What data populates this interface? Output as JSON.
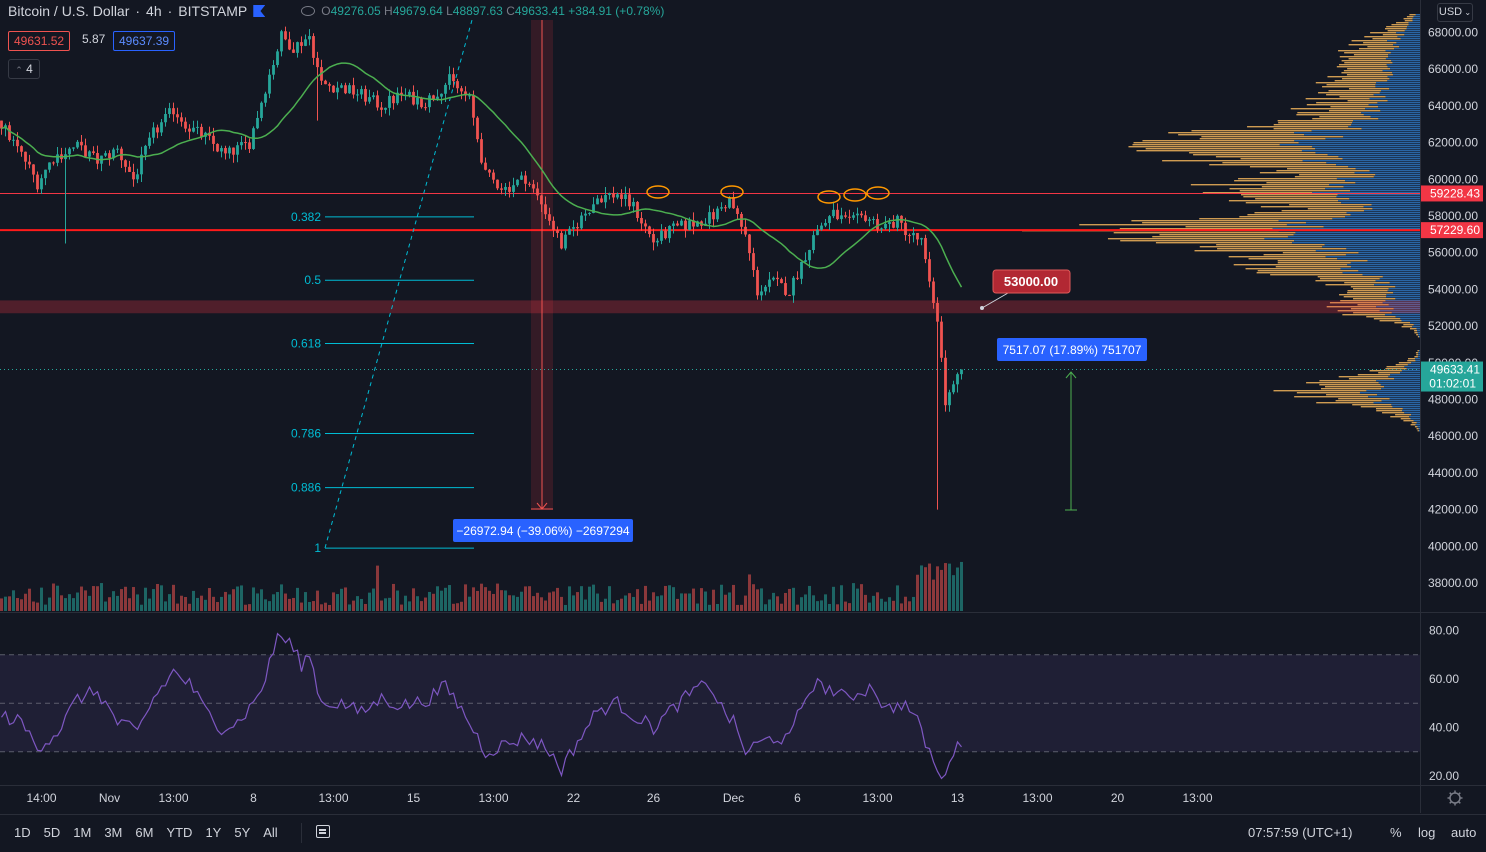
{
  "header": {
    "symbol": "Bitcoin / U.S. Dollar",
    "interval": "4h",
    "exchange": "BITSTAMP",
    "o_label": "O",
    "o_value": "49276.05",
    "h_label": "H",
    "h_value": "49679.64",
    "l_label": "L",
    "l_value": "48897.63",
    "c_label": "C",
    "c_value": "49633.41",
    "change": "+384.91 (+0.78%)",
    "bid": "49631.52",
    "spread": "5.87",
    "ask": "49637.39",
    "indicators_count": "4",
    "currency": "USD"
  },
  "bottom_bar": {
    "ranges": [
      "1D",
      "5D",
      "1M",
      "3M",
      "6M",
      "YTD",
      "1Y",
      "5Y",
      "All"
    ],
    "clock": "07:57:59 (UTC+1)",
    "percent": "%",
    "log": "log",
    "auto": "auto"
  },
  "colors": {
    "background": "#131722",
    "up": "#26a69a",
    "down": "#ef5350",
    "ma": "#4caf50",
    "rsi": "#7e57c2",
    "fib": "#00bcd4",
    "accent_blue": "#2962ff",
    "vp_up": "#f0b35b",
    "vp_down": "#2e6fb5"
  },
  "chart_data": [
    {
      "type": "candlestick",
      "title": "Bitcoin / U.S. Dollar",
      "y_axis": {
        "ylim": [
          36500,
          69500
        ],
        "ticks": [
          38000,
          40000,
          42000,
          44000,
          46000,
          48000,
          50000,
          52000,
          54000,
          56000,
          58000,
          60000,
          62000,
          64000,
          66000,
          68000
        ],
        "tick_labels": [
          "38000.00",
          "40000.00",
          "42000.00",
          "44000.00",
          "46000.00",
          "48000.00",
          "50000.00",
          "52000.00",
          "54000.00",
          "56000.00",
          "58000.00",
          "60000.00",
          "62000.00",
          "64000.00",
          "66000.00",
          "68000.00"
        ]
      },
      "x_axis": {
        "tick_labels": [
          "14:00",
          "Nov",
          "13:00",
          "8",
          "13:00",
          "15",
          "13:00",
          "22",
          "26",
          "Dec",
          "6",
          "13:00",
          "13",
          "13:00",
          "20",
          "13:00"
        ],
        "tick_bars": [
          10,
          27,
          43,
          63,
          83,
          103,
          123,
          143,
          163,
          183,
          199,
          219,
          239,
          259,
          279,
          299
        ]
      },
      "ohlc_key_points": [
        {
          "bar": 0,
          "close": 63000
        },
        {
          "bar": 6,
          "close": 61000
        },
        {
          "bar": 9,
          "close": 59800
        },
        {
          "bar": 13,
          "close": 61200
        },
        {
          "bar": 19,
          "close": 61800
        },
        {
          "bar": 24,
          "close": 61000
        },
        {
          "bar": 29,
          "close": 61600
        },
        {
          "bar": 33,
          "close": 60000
        },
        {
          "bar": 38,
          "close": 62500
        },
        {
          "bar": 43,
          "close": 63800
        },
        {
          "bar": 47,
          "close": 62800
        },
        {
          "bar": 51,
          "close": 62300
        },
        {
          "bar": 56,
          "close": 61300
        },
        {
          "bar": 62,
          "close": 62000
        },
        {
          "bar": 66,
          "close": 65000
        },
        {
          "bar": 70,
          "close": 67800
        },
        {
          "bar": 73,
          "close": 67200
        },
        {
          "bar": 77,
          "close": 67800
        },
        {
          "bar": 80,
          "close": 65200
        },
        {
          "bar": 85,
          "close": 65000
        },
        {
          "bar": 90,
          "close": 64600
        },
        {
          "bar": 95,
          "close": 64000
        },
        {
          "bar": 100,
          "close": 64600
        },
        {
          "bar": 106,
          "close": 64200
        },
        {
          "bar": 112,
          "close": 65400
        },
        {
          "bar": 117,
          "close": 64300
        },
        {
          "bar": 121,
          "close": 60200
        },
        {
          "bar": 126,
          "close": 59500
        },
        {
          "bar": 131,
          "close": 60100
        },
        {
          "bar": 136,
          "close": 58300
        },
        {
          "bar": 140,
          "close": 56400
        },
        {
          "bar": 144,
          "close": 57600
        },
        {
          "bar": 149,
          "close": 59000
        },
        {
          "bar": 154,
          "close": 59200
        },
        {
          "bar": 158,
          "close": 58500
        },
        {
          "bar": 163,
          "close": 56600
        },
        {
          "bar": 168,
          "close": 57300
        },
        {
          "bar": 173,
          "close": 57600
        },
        {
          "bar": 178,
          "close": 58000
        },
        {
          "bar": 182,
          "close": 58900
        },
        {
          "bar": 186,
          "close": 56900
        },
        {
          "bar": 189,
          "close": 53900
        },
        {
          "bar": 193,
          "close": 54400
        },
        {
          "bar": 197,
          "close": 53900
        },
        {
          "bar": 201,
          "close": 55900
        },
        {
          "bar": 204,
          "close": 57300
        },
        {
          "bar": 208,
          "close": 58100
        },
        {
          "bar": 212,
          "close": 57600
        },
        {
          "bar": 216,
          "close": 58000
        },
        {
          "bar": 220,
          "close": 57400
        },
        {
          "bar": 224,
          "close": 57700
        },
        {
          "bar": 227,
          "close": 57000
        },
        {
          "bar": 230,
          "close": 56600
        },
        {
          "bar": 232,
          "close": 54200
        },
        {
          "bar": 234,
          "close": 52500
        },
        {
          "bar": 236,
          "close": 47800
        },
        {
          "bar": 238,
          "close": 48600
        },
        {
          "bar": 240,
          "close": 49600
        }
      ],
      "last_price": 49633.41,
      "countdown": "01:02:01",
      "price_labels": [
        {
          "value": 59228.43,
          "label": "59228.43",
          "color": "#f23645"
        },
        {
          "value": 57229.6,
          "label": "57229.60",
          "color": "#f23645"
        },
        {
          "value": 49633.41,
          "label": "49633.41",
          "color": "#26a69a"
        }
      ],
      "horizontal_lines": [
        {
          "value": 59228.43,
          "color": "#f23645"
        },
        {
          "value": 57229.6,
          "color": "#ff1a1a"
        }
      ],
      "zone": {
        "from": 52700,
        "to": 53400,
        "label": "53000.00"
      },
      "fibonacci": {
        "levels": [
          {
            "ratio": "0.382",
            "price": 57950
          },
          {
            "ratio": "0.5",
            "price": 54500
          },
          {
            "ratio": "0.618",
            "price": 51050
          },
          {
            "ratio": "0.786",
            "price": 46150
          },
          {
            "ratio": "0.886",
            "price": 43200
          },
          {
            "ratio": "1",
            "price": 39900
          }
        ]
      },
      "measures": [
        {
          "label": "−26972.94 (−39.06%) −2697294",
          "direction": "down"
        },
        {
          "label": "7517.07 (17.89%) 751707",
          "direction": "up"
        }
      ]
    },
    {
      "type": "line",
      "name": "RSI",
      "ylim": [
        18,
        83
      ],
      "ticks": [
        20,
        40,
        60,
        80
      ],
      "tick_labels": [
        "20.00",
        "40.00",
        "60.00",
        "80.00"
      ],
      "band": [
        30,
        70
      ],
      "mid": 50,
      "key_points": [
        {
          "bar": 0,
          "value": 45
        },
        {
          "bar": 5,
          "value": 42
        },
        {
          "bar": 9,
          "value": 32
        },
        {
          "bar": 14,
          "value": 38
        },
        {
          "bar": 19,
          "value": 52
        },
        {
          "bar": 24,
          "value": 55
        },
        {
          "bar": 29,
          "value": 42
        },
        {
          "bar": 34,
          "value": 38
        },
        {
          "bar": 38,
          "value": 52
        },
        {
          "bar": 43,
          "value": 63
        },
        {
          "bar": 47,
          "value": 58
        },
        {
          "bar": 51,
          "value": 47
        },
        {
          "bar": 55,
          "value": 40
        },
        {
          "bar": 59,
          "value": 42
        },
        {
          "bar": 63,
          "value": 50
        },
        {
          "bar": 66,
          "value": 60
        },
        {
          "bar": 69,
          "value": 78
        },
        {
          "bar": 72,
          "value": 75
        },
        {
          "bar": 75,
          "value": 66
        },
        {
          "bar": 77,
          "value": 70
        },
        {
          "bar": 80,
          "value": 50
        },
        {
          "bar": 85,
          "value": 50
        },
        {
          "bar": 90,
          "value": 46
        },
        {
          "bar": 95,
          "value": 52
        },
        {
          "bar": 100,
          "value": 49
        },
        {
          "bar": 106,
          "value": 51
        },
        {
          "bar": 111,
          "value": 57
        },
        {
          "bar": 114,
          "value": 50
        },
        {
          "bar": 117,
          "value": 42
        },
        {
          "bar": 121,
          "value": 30
        },
        {
          "bar": 126,
          "value": 33
        },
        {
          "bar": 131,
          "value": 36
        },
        {
          "bar": 136,
          "value": 32
        },
        {
          "bar": 140,
          "value": 23
        },
        {
          "bar": 144,
          "value": 34
        },
        {
          "bar": 149,
          "value": 47
        },
        {
          "bar": 154,
          "value": 50
        },
        {
          "bar": 158,
          "value": 45
        },
        {
          "bar": 163,
          "value": 40
        },
        {
          "bar": 168,
          "value": 48
        },
        {
          "bar": 173,
          "value": 55
        },
        {
          "bar": 177,
          "value": 58
        },
        {
          "bar": 180,
          "value": 48
        },
        {
          "bar": 183,
          "value": 42
        },
        {
          "bar": 186,
          "value": 30
        },
        {
          "bar": 189,
          "value": 33
        },
        {
          "bar": 193,
          "value": 36
        },
        {
          "bar": 197,
          "value": 35
        },
        {
          "bar": 200,
          "value": 49
        },
        {
          "bar": 203,
          "value": 58
        },
        {
          "bar": 207,
          "value": 56
        },
        {
          "bar": 211,
          "value": 52
        },
        {
          "bar": 215,
          "value": 55
        },
        {
          "bar": 218,
          "value": 57
        },
        {
          "bar": 221,
          "value": 47
        },
        {
          "bar": 225,
          "value": 50
        },
        {
          "bar": 228,
          "value": 46
        },
        {
          "bar": 230,
          "value": 38
        },
        {
          "bar": 232,
          "value": 30
        },
        {
          "bar": 234,
          "value": 22
        },
        {
          "bar": 235,
          "value": 17
        },
        {
          "bar": 237,
          "value": 28
        },
        {
          "bar": 240,
          "value": 33
        }
      ]
    }
  ]
}
